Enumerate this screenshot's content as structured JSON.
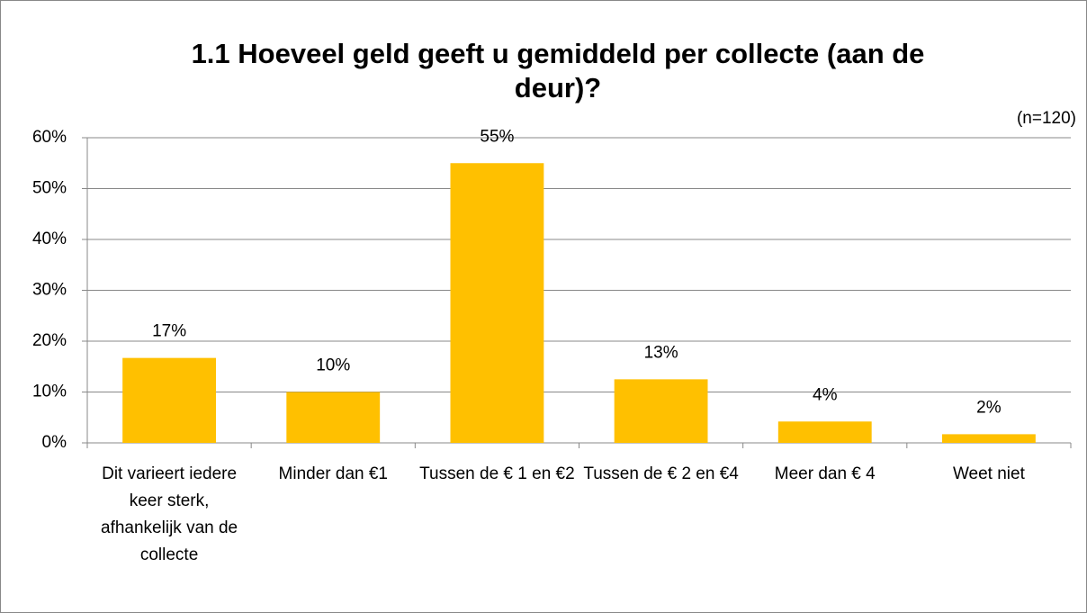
{
  "chart_data": {
    "type": "bar",
    "title": "1.1 Hoeveel geld geeft u gemiddeld per collecte (aan de deur)?",
    "subtitle": "(n=120)",
    "categories": [
      "Dit varieert iedere keer sterk, afhankelijk van de collecte",
      "Minder dan €1",
      "Tussen de € 1 en €2",
      "Tussen de € 2 en €4",
      "Meer dan € 4",
      "Weet niet"
    ],
    "values": [
      16.7,
      10,
      55,
      12.5,
      4.2,
      1.7
    ],
    "value_labels": [
      "17%",
      "10%",
      "55%",
      "13%",
      "4%",
      "2%"
    ],
    "color": "#ffc000",
    "ylim": [
      0,
      60
    ],
    "yticks": [
      {
        "value": 0,
        "label": "0%"
      },
      {
        "value": 10,
        "label": "10%"
      },
      {
        "value": 20,
        "label": "20%"
      },
      {
        "value": 30,
        "label": "30%"
      },
      {
        "value": 40,
        "label": "40%"
      },
      {
        "value": 50,
        "label": "50%"
      },
      {
        "value": 60,
        "label": "60%"
      }
    ],
    "grid": true
  }
}
